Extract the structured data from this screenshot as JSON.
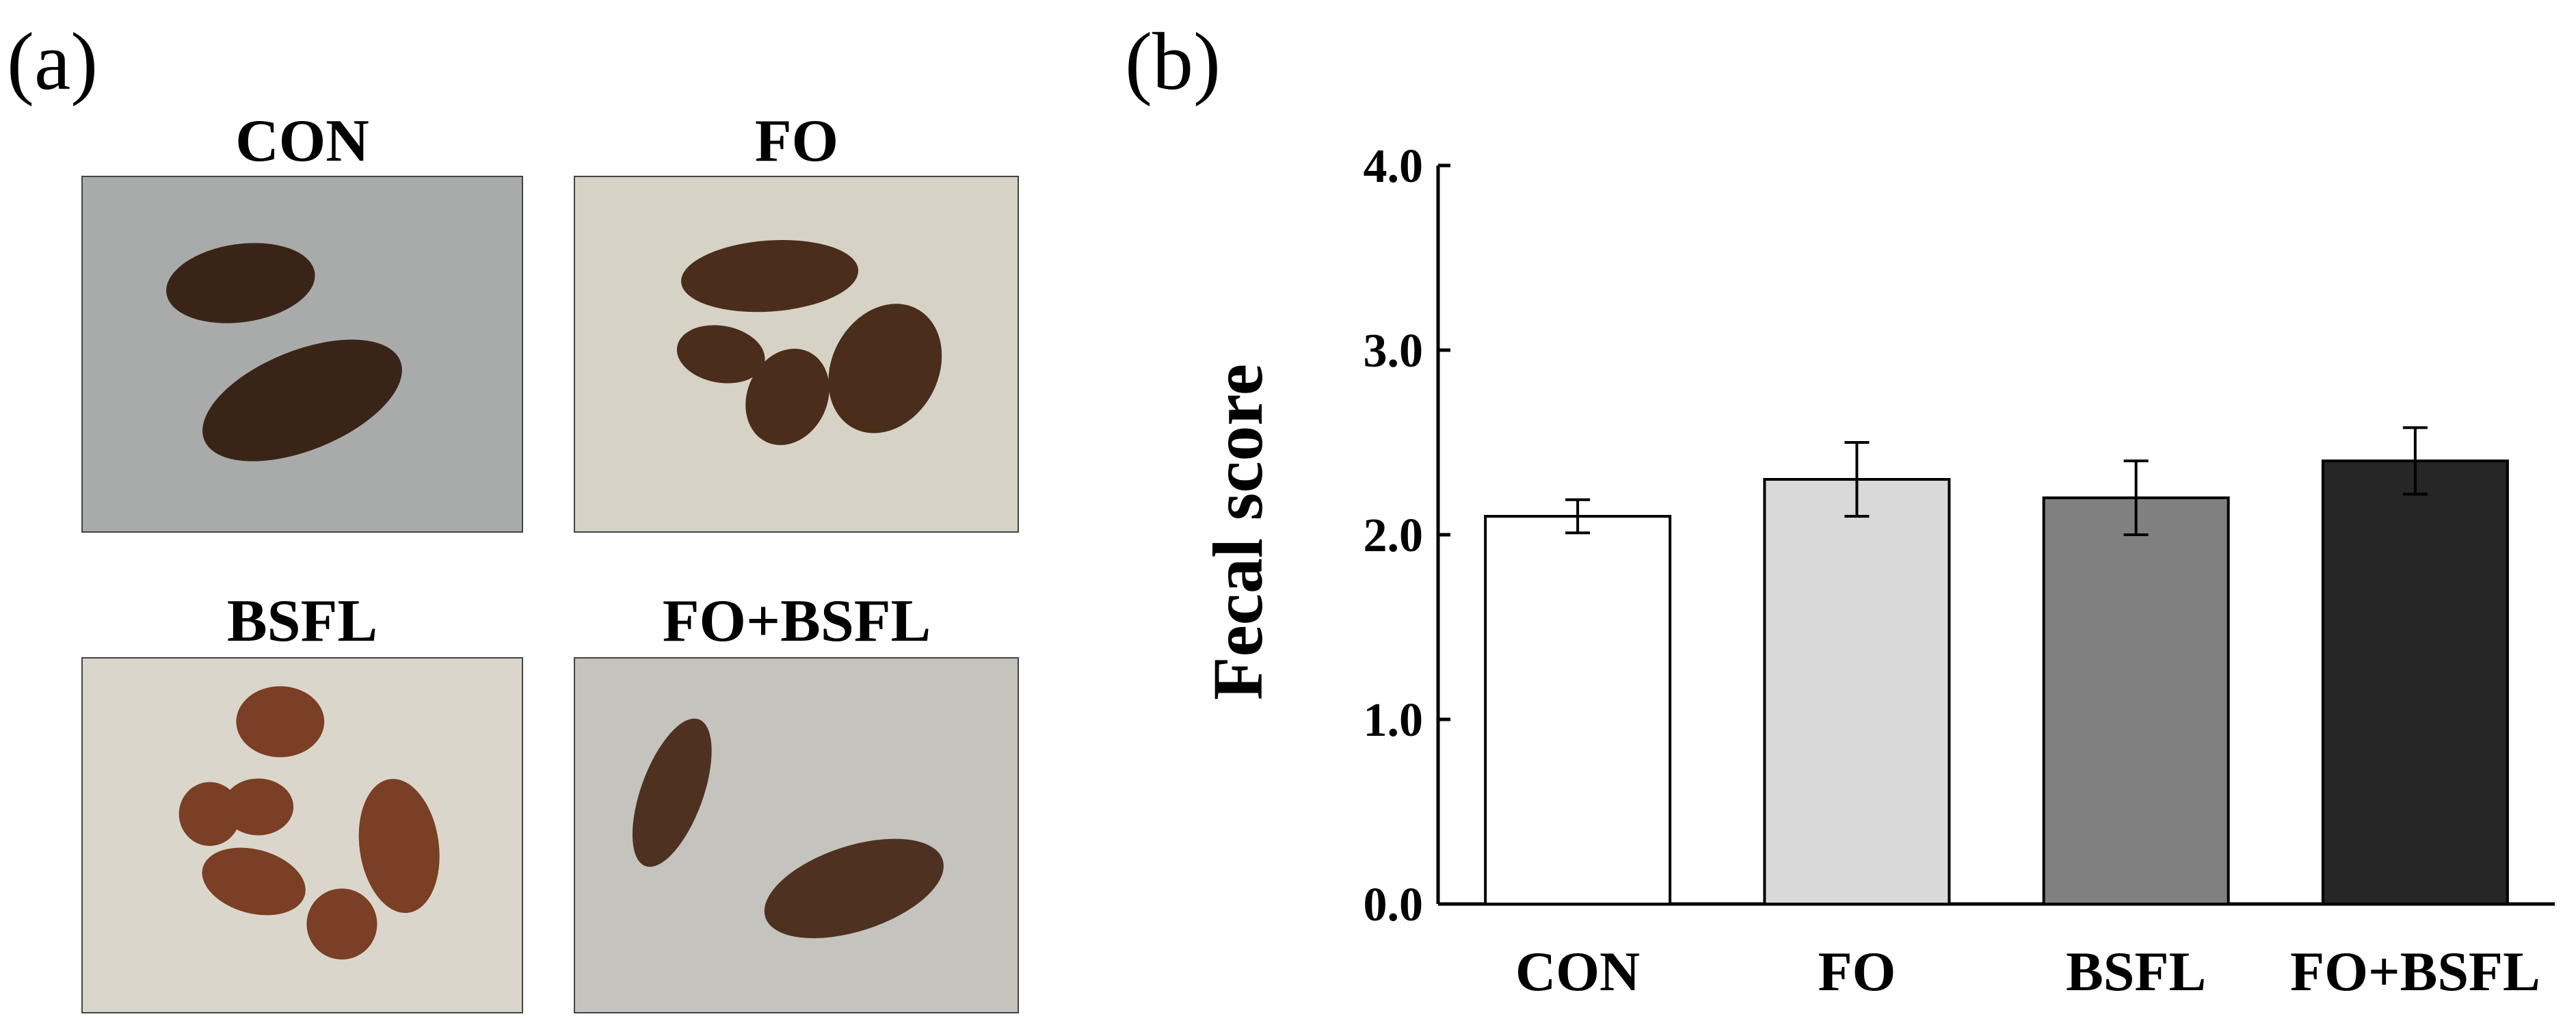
{
  "panel_a": {
    "label": "(a)",
    "photos": [
      {
        "title": "CON",
        "bg": "#a9abaa",
        "feces": "#3a2418"
      },
      {
        "title": "FO",
        "bg": "#d6d3c6",
        "feces": "#4a2d1a"
      },
      {
        "title": "BSFL",
        "bg": "#dbd6cb",
        "feces": "#7a3f24"
      },
      {
        "title": "FO+BSFL",
        "bg": "#c4c3bd",
        "feces": "#4e3120"
      }
    ]
  },
  "panel_b": {
    "label": "(b)"
  },
  "chart_data": {
    "type": "bar",
    "categories": [
      "CON",
      "FO",
      "BSFL",
      "FO+BSFL"
    ],
    "values": [
      2.1,
      2.3,
      2.2,
      2.4
    ],
    "errors": [
      0.09,
      0.2,
      0.2,
      0.18
    ],
    "bar_colors": [
      "#ffffff",
      "#d9d9d9",
      "#808080",
      "#262626"
    ],
    "title": "",
    "xlabel": "",
    "ylabel": "Fecal score",
    "ylim": [
      0,
      4
    ],
    "yticks": [
      0,
      1,
      2,
      3,
      4
    ],
    "ytick_labels": [
      "0.0",
      "1.0",
      "2.0",
      "3.0",
      "4.0"
    ],
    "grid": false,
    "legend": "none"
  }
}
